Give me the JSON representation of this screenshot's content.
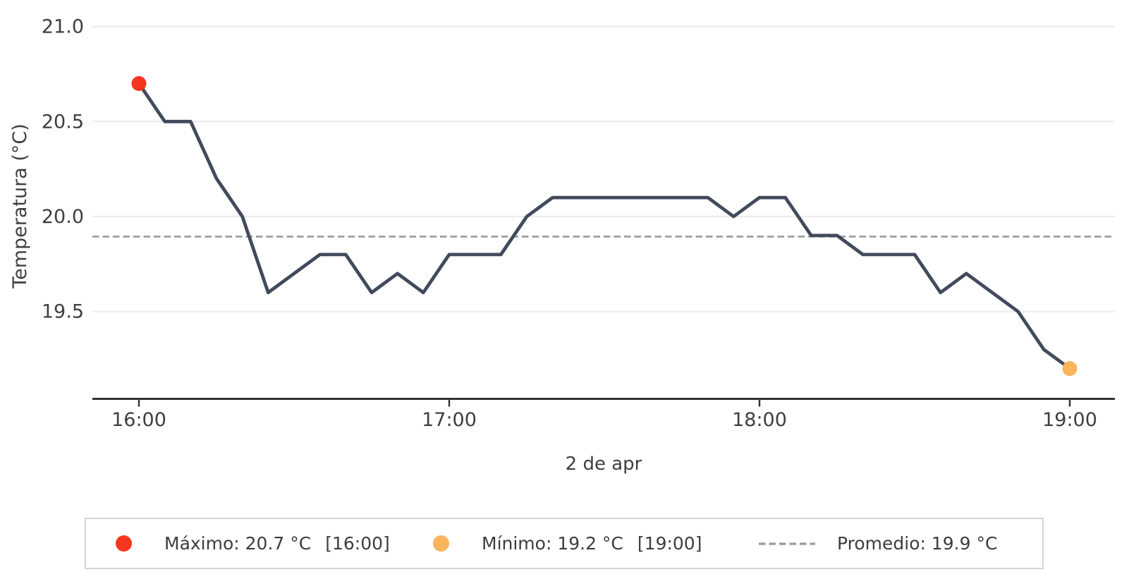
{
  "chart_data": {
    "type": "line",
    "title": "",
    "xlabel": "2 de apr",
    "ylabel": "Temperatura (°C)",
    "x": [
      "16:00",
      "16:05",
      "16:10",
      "16:15",
      "16:20",
      "16:25",
      "16:30",
      "16:35",
      "16:40",
      "16:45",
      "16:50",
      "16:55",
      "17:00",
      "17:05",
      "17:10",
      "17:15",
      "17:20",
      "17:25",
      "17:30",
      "17:35",
      "17:40",
      "17:45",
      "17:50",
      "17:55",
      "18:00",
      "18:05",
      "18:10",
      "18:15",
      "18:20",
      "18:25",
      "18:30",
      "18:35",
      "18:40",
      "18:45",
      "18:50",
      "18:55",
      "19:00"
    ],
    "series": [
      {
        "name": "Temperatura",
        "values": [
          20.7,
          20.5,
          20.5,
          20.2,
          20.0,
          19.6,
          19.7,
          19.8,
          19.8,
          19.6,
          19.7,
          19.6,
          19.8,
          19.8,
          19.8,
          20.0,
          20.1,
          20.1,
          20.1,
          20.1,
          20.1,
          20.1,
          20.1,
          20.0,
          20.1,
          20.1,
          19.9,
          19.9,
          19.8,
          19.8,
          19.8,
          19.6,
          19.7,
          19.6,
          19.5,
          19.3,
          19.2
        ]
      }
    ],
    "xticks": [
      "16:00",
      "17:00",
      "18:00",
      "19:00"
    ],
    "yticks": [
      "19.5",
      "20.0",
      "20.5",
      "21.0"
    ],
    "ylim": [
      19.05,
      21.1
    ],
    "grid": true,
    "legend_position": "bottom",
    "average_line": {
      "value": 19.9,
      "style": "dashed"
    },
    "max_point": {
      "time": "16:00",
      "value": 20.7
    },
    "min_point": {
      "time": "19:00",
      "value": 19.2
    }
  },
  "colors": {
    "line": "#424a5c",
    "max_dot": "#f6361f",
    "min_dot": "#f9b45c",
    "average_dash": "#9a9a9a",
    "grid": "#ececec",
    "axis": "#333333",
    "text": "#3f3f3f",
    "legend_border": "#d4d4d4"
  },
  "legend": {
    "items": [
      {
        "name": "max",
        "marker": "dot",
        "label": "Máximo: 20.7 °C",
        "time": "[16:00]"
      },
      {
        "name": "min",
        "marker": "dot",
        "label": "Mínimo: 19.2 °C",
        "time": "[19:00]"
      },
      {
        "name": "avg",
        "marker": "dashed-line",
        "label": "Promedio: 19.9 °C",
        "time": ""
      }
    ]
  }
}
